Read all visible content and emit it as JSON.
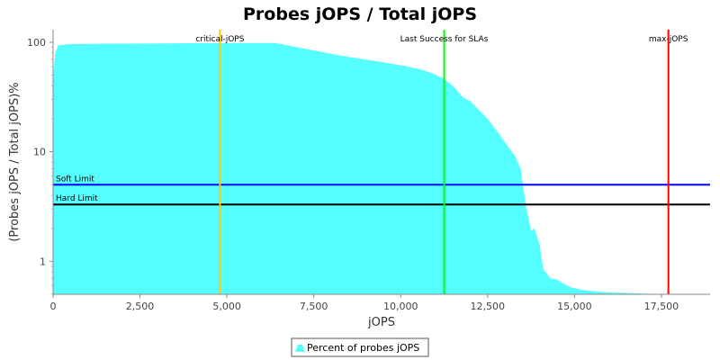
{
  "chart_data": {
    "type": "area",
    "title": "Probes jOPS / Total jOPS",
    "xlabel": "jOPS",
    "ylabel": "(Probes jOPS / Total jOPS)%",
    "xlim": [
      0,
      18900
    ],
    "ylim": [
      0.5,
      130
    ],
    "y_scale": "log",
    "grid": false,
    "x_ticks": [
      {
        "value": 0,
        "label": "0"
      },
      {
        "value": 2500,
        "label": "2,500"
      },
      {
        "value": 5000,
        "label": "5,000"
      },
      {
        "value": 7500,
        "label": "7,500"
      },
      {
        "value": 10000,
        "label": "10,000"
      },
      {
        "value": 12500,
        "label": "12,500"
      },
      {
        "value": 15000,
        "label": "15,000"
      },
      {
        "value": 17500,
        "label": "17,500"
      }
    ],
    "y_ticks": [
      {
        "value": 1,
        "label": "1"
      },
      {
        "value": 10,
        "label": "10"
      },
      {
        "value": 100,
        "label": "100"
      }
    ],
    "series": [
      {
        "name": "Percent of probes jOPS",
        "color": "#55FFFF",
        "x": [
          0,
          60,
          150,
          500,
          1500,
          3000,
          4800,
          6400,
          7000,
          7600,
          8200,
          8800,
          9300,
          9800,
          10200,
          10600,
          10900,
          11200,
          11500,
          11800,
          12000,
          12200,
          12500,
          12800,
          13100,
          13300,
          13450,
          13600,
          13750,
          13850,
          14000,
          14100,
          14300,
          14500,
          14700,
          14900,
          15200,
          15600,
          16000,
          16800,
          17700
        ],
        "values": [
          45,
          80,
          94,
          96,
          97,
          97.5,
          98,
          98,
          90,
          83,
          76,
          71,
          67,
          63,
          60,
          56,
          52,
          47,
          40,
          31,
          29,
          25,
          20,
          15,
          11,
          9,
          7,
          3.2,
          1.9,
          2.0,
          1.4,
          0.85,
          0.7,
          0.68,
          0.62,
          0.58,
          0.55,
          0.53,
          0.52,
          0.51,
          0.5
        ]
      }
    ],
    "vertical_markers": [
      {
        "label": "critical-jOPS",
        "x": 4800,
        "color": "#FFC800"
      },
      {
        "label": "Last Success for SLAs",
        "x": 11250,
        "color": "#00FF00"
      },
      {
        "label": "max-jOPS",
        "x": 17700,
        "color": "#FF0000"
      }
    ],
    "horizontal_markers": [
      {
        "label": "Soft Limit",
        "y": 5,
        "color": "#0000FF"
      },
      {
        "label": "Hard Limit",
        "y": 3.3,
        "color": "#000000"
      }
    ],
    "legend": {
      "position": "bottom",
      "entries": [
        "Percent of probes jOPS"
      ]
    }
  }
}
